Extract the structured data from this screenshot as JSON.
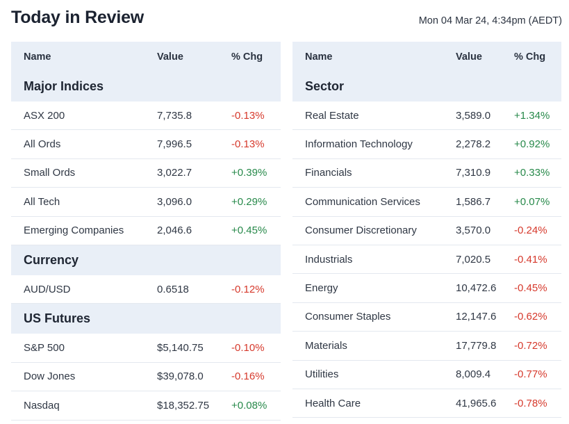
{
  "title": "Today in Review",
  "timestamp": "Mon 04 Mar 24, 4:34pm (AEDT)",
  "headers": {
    "name": "Name",
    "value": "Value",
    "chg": "% Chg"
  },
  "left": {
    "sections": [
      {
        "heading": "Major Indices",
        "rows": [
          {
            "name": "ASX 200",
            "value": "7,735.8",
            "chg": "-0.13%",
            "dir": "down"
          },
          {
            "name": "All Ords",
            "value": "7,996.5",
            "chg": "-0.13%",
            "dir": "down"
          },
          {
            "name": "Small Ords",
            "value": "3,022.7",
            "chg": "+0.39%",
            "dir": "up"
          },
          {
            "name": "All Tech",
            "value": "3,096.0",
            "chg": "+0.29%",
            "dir": "up"
          },
          {
            "name": "Emerging Companies",
            "value": "2,046.6",
            "chg": "+0.45%",
            "dir": "up"
          }
        ]
      },
      {
        "heading": "Currency",
        "rows": [
          {
            "name": "AUD/USD",
            "value": "0.6518",
            "chg": "-0.12%",
            "dir": "down"
          }
        ]
      },
      {
        "heading": "US Futures",
        "rows": [
          {
            "name": "S&P 500",
            "value": "$5,140.75",
            "chg": "-0.10%",
            "dir": "down"
          },
          {
            "name": "Dow Jones",
            "value": "$39,078.0",
            "chg": "-0.16%",
            "dir": "down"
          },
          {
            "name": "Nasdaq",
            "value": "$18,352.75",
            "chg": "+0.08%",
            "dir": "up"
          }
        ]
      }
    ]
  },
  "right": {
    "sections": [
      {
        "heading": "Sector",
        "rows": [
          {
            "name": "Real Estate",
            "value": "3,589.0",
            "chg": "+1.34%",
            "dir": "up"
          },
          {
            "name": "Information Technology",
            "value": "2,278.2",
            "chg": "+0.92%",
            "dir": "up"
          },
          {
            "name": "Financials",
            "value": "7,310.9",
            "chg": "+0.33%",
            "dir": "up"
          },
          {
            "name": "Communication Services",
            "value": "1,586.7",
            "chg": "+0.07%",
            "dir": "up"
          },
          {
            "name": "Consumer Discretionary",
            "value": "3,570.0",
            "chg": "-0.24%",
            "dir": "down"
          },
          {
            "name": "Industrials",
            "value": "7,020.5",
            "chg": "-0.41%",
            "dir": "down"
          },
          {
            "name": "Energy",
            "value": "10,472.6",
            "chg": "-0.45%",
            "dir": "down"
          },
          {
            "name": "Consumer Staples",
            "value": "12,147.6",
            "chg": "-0.62%",
            "dir": "down"
          },
          {
            "name": "Materials",
            "value": "17,779.8",
            "chg": "-0.72%",
            "dir": "down"
          },
          {
            "name": "Utilities",
            "value": "8,009.4",
            "chg": "-0.77%",
            "dir": "down"
          },
          {
            "name": "Health Care",
            "value": "41,965.6",
            "chg": "-0.78%",
            "dir": "down"
          }
        ]
      }
    ]
  },
  "colors": {
    "up": "#27894a",
    "down": "#d6392c",
    "header_bg": "#e9eff7"
  }
}
